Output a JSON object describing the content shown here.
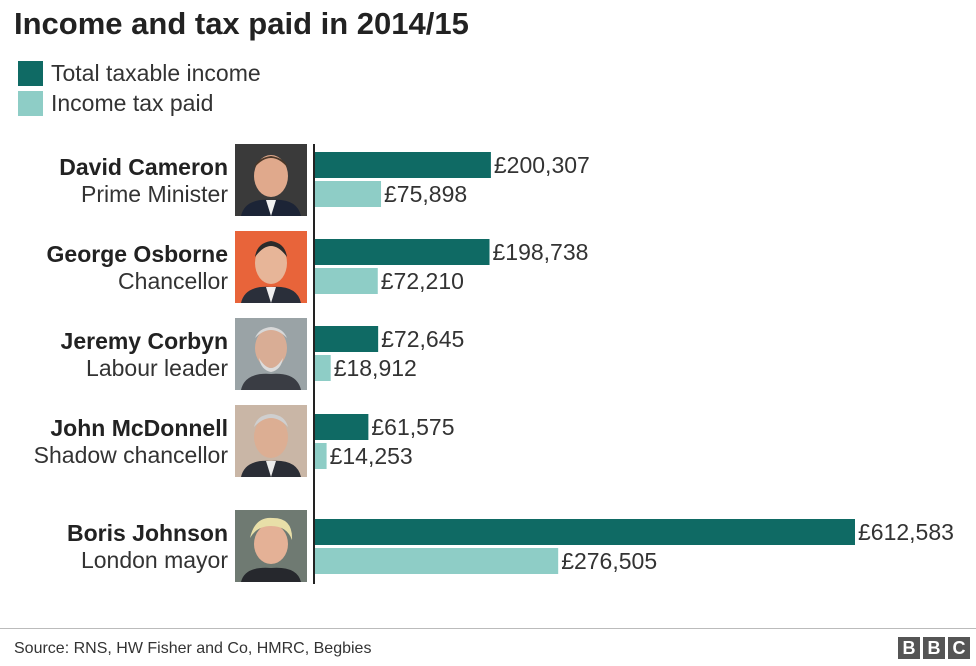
{
  "chart_data": {
    "type": "bar",
    "orientation": "horizontal",
    "title": "Income and tax paid in 2014/15",
    "categories": [
      "David Cameron",
      "George Osborne",
      "Jeremy Corbyn",
      "John McDonnell",
      "Boris Johnson"
    ],
    "roles": [
      "Prime Minister",
      "Chancellor",
      "Labour leader",
      "Shadow chancellor",
      "London mayor"
    ],
    "series": [
      {
        "name": "Total taxable income",
        "color": "#0f6a64",
        "values": [
          200307,
          198738,
          72645,
          61575,
          612583
        ],
        "labels": [
          "£200,307",
          "£198,738",
          "£72,645",
          "£61,575",
          "£612,583"
        ]
      },
      {
        "name": "Income tax paid",
        "color": "#8ecdc6",
        "values": [
          75898,
          72210,
          18912,
          14253,
          276505
        ],
        "labels": [
          "£75,898",
          "£72,210",
          "£18,912",
          "£14,253",
          "£276,505"
        ]
      }
    ],
    "legend_position": "top-left",
    "grid": false
  },
  "source": "Source:  RNS, HW Fisher and Co, HMRC, Begbies",
  "logo": [
    "B",
    "B",
    "C"
  ]
}
